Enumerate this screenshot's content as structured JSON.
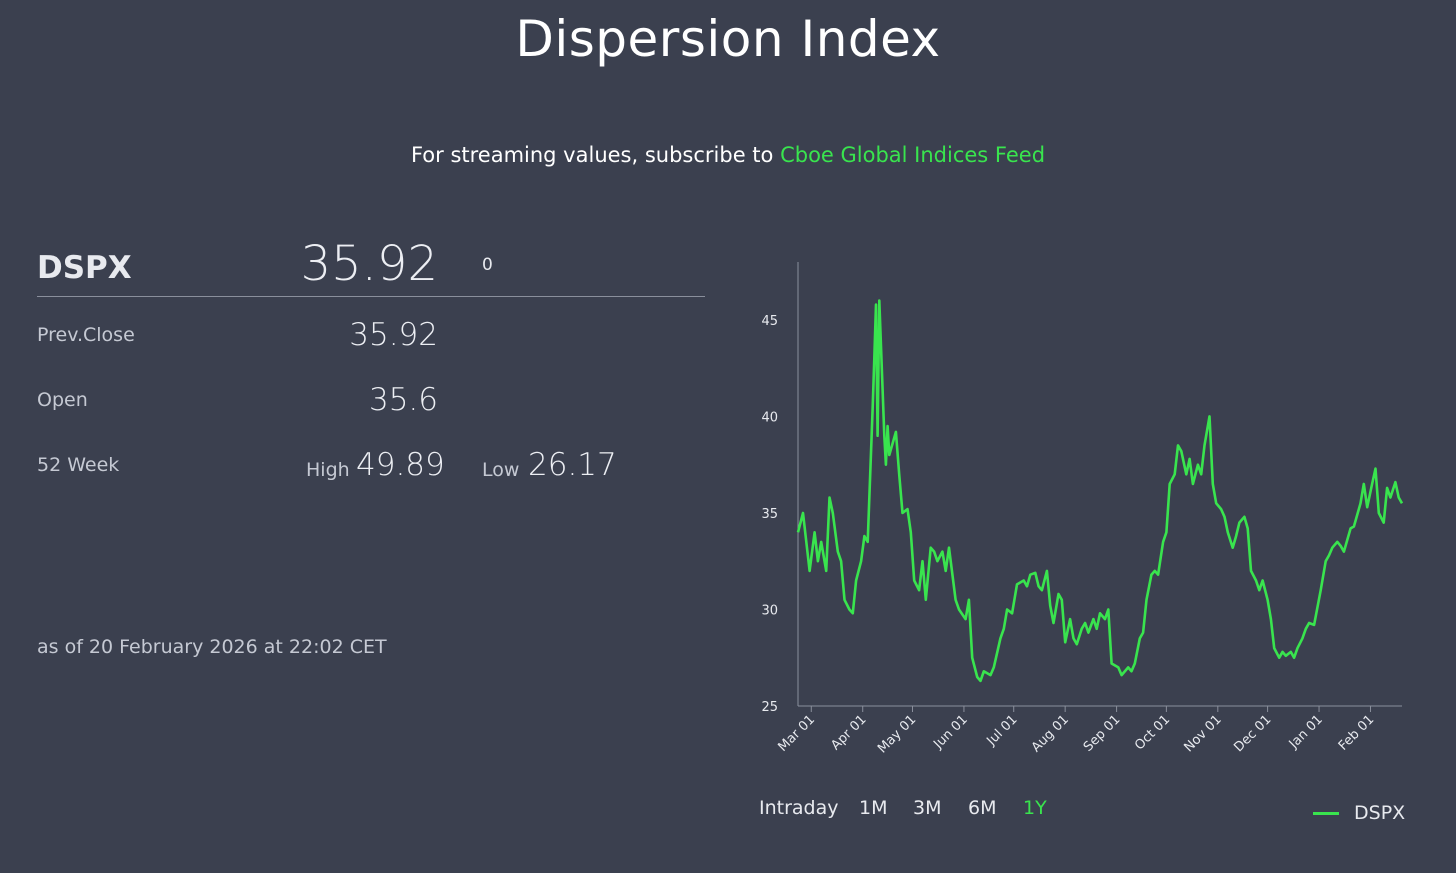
{
  "page": {
    "title": "Dispersion Index",
    "subtitle_prefix": "For streaming values, subscribe to",
    "subtitle_link": "Cboe Global Indices Feed"
  },
  "quote": {
    "symbol": "DSPX",
    "last": "35.92",
    "change": "0",
    "prev_close_label": "Prev.Close",
    "prev_close": "35.92",
    "open_label": "Open",
    "open": "35.6",
    "week52_label": "52 Week",
    "high_label": "High",
    "high": "49.89",
    "low_label": "Low",
    "low": "26.17",
    "as_of": "as of 20 February 2026 at 22:02 CET"
  },
  "ranges": [
    {
      "label": "Intraday",
      "active": false
    },
    {
      "label": "1M",
      "active": false
    },
    {
      "label": "3M",
      "active": false
    },
    {
      "label": "6M",
      "active": false
    },
    {
      "label": "1Y",
      "active": true
    }
  ],
  "colors": {
    "background": "#3b404f",
    "accent": "#39e44e",
    "axis": "#8a8f9c"
  },
  "chart_data": {
    "type": "line",
    "title": "",
    "xlabel": "",
    "ylabel": "",
    "ylim": [
      25,
      48
    ],
    "y_ticks": [
      25,
      30,
      35,
      40,
      45
    ],
    "x_ticks": [
      {
        "label": "Mar 01",
        "date": "2025-03-01"
      },
      {
        "label": "Apr 01",
        "date": "2025-04-01"
      },
      {
        "label": "May 01",
        "date": "2025-05-01"
      },
      {
        "label": "Jun 01",
        "date": "2025-06-01"
      },
      {
        "label": "Jul 01",
        "date": "2025-07-01"
      },
      {
        "label": "Aug 01",
        "date": "2025-08-01"
      },
      {
        "label": "Sep 01",
        "date": "2025-09-01"
      },
      {
        "label": "Oct 01",
        "date": "2025-10-01"
      },
      {
        "label": "Nov 01",
        "date": "2025-11-01"
      },
      {
        "label": "Dec 01",
        "date": "2025-12-01"
      },
      {
        "label": "Jan 01",
        "date": "2026-01-01"
      },
      {
        "label": "Feb 01",
        "date": "2026-02-01"
      }
    ],
    "xlim": [
      "2025-02-21",
      "2026-02-20"
    ],
    "legend": "bottom-right",
    "grid": false,
    "series": [
      {
        "name": "DSPX",
        "color": "#39e44e",
        "points": [
          [
            "2025-02-21",
            34.0
          ],
          [
            "2025-02-24",
            35.0
          ],
          [
            "2025-02-26",
            33.5
          ],
          [
            "2025-02-28",
            32.0
          ],
          [
            "2025-03-03",
            34.0
          ],
          [
            "2025-03-05",
            32.5
          ],
          [
            "2025-03-07",
            33.5
          ],
          [
            "2025-03-10",
            32.0
          ],
          [
            "2025-03-12",
            35.8
          ],
          [
            "2025-03-14",
            35.0
          ],
          [
            "2025-03-17",
            33.0
          ],
          [
            "2025-03-19",
            32.5
          ],
          [
            "2025-03-21",
            30.5
          ],
          [
            "2025-03-24",
            30.0
          ],
          [
            "2025-03-26",
            29.8
          ],
          [
            "2025-03-28",
            31.5
          ],
          [
            "2025-03-31",
            32.5
          ],
          [
            "2025-04-02",
            33.8
          ],
          [
            "2025-04-04",
            33.5
          ],
          [
            "2025-04-07",
            40.5
          ],
          [
            "2025-04-08",
            43.0
          ],
          [
            "2025-04-09",
            45.8
          ],
          [
            "2025-04-10",
            39.0
          ],
          [
            "2025-04-11",
            46.0
          ],
          [
            "2025-04-14",
            39.0
          ],
          [
            "2025-04-15",
            37.5
          ],
          [
            "2025-04-16",
            39.5
          ],
          [
            "2025-04-17",
            38.0
          ],
          [
            "2025-04-21",
            39.2
          ],
          [
            "2025-04-23",
            37.0
          ],
          [
            "2025-04-25",
            35.0
          ],
          [
            "2025-04-28",
            35.2
          ],
          [
            "2025-04-30",
            34.0
          ],
          [
            "2025-05-02",
            31.5
          ],
          [
            "2025-05-05",
            31.0
          ],
          [
            "2025-05-07",
            32.5
          ],
          [
            "2025-05-09",
            30.5
          ],
          [
            "2025-05-12",
            33.2
          ],
          [
            "2025-05-14",
            33.0
          ],
          [
            "2025-05-16",
            32.5
          ],
          [
            "2025-05-19",
            33.0
          ],
          [
            "2025-05-21",
            32.0
          ],
          [
            "2025-05-23",
            33.2
          ],
          [
            "2025-05-27",
            30.5
          ],
          [
            "2025-05-29",
            30.0
          ],
          [
            "2025-06-02",
            29.5
          ],
          [
            "2025-06-04",
            30.5
          ],
          [
            "2025-06-06",
            27.5
          ],
          [
            "2025-06-09",
            26.5
          ],
          [
            "2025-06-11",
            26.3
          ],
          [
            "2025-06-13",
            26.8
          ],
          [
            "2025-06-17",
            26.6
          ],
          [
            "2025-06-19",
            27.0
          ],
          [
            "2025-06-23",
            28.5
          ],
          [
            "2025-06-25",
            29.0
          ],
          [
            "2025-06-27",
            30.0
          ],
          [
            "2025-06-30",
            29.8
          ],
          [
            "2025-07-03",
            31.3
          ],
          [
            "2025-07-07",
            31.5
          ],
          [
            "2025-07-09",
            31.2
          ],
          [
            "2025-07-11",
            31.8
          ],
          [
            "2025-07-14",
            31.9
          ],
          [
            "2025-07-16",
            31.2
          ],
          [
            "2025-07-18",
            31.0
          ],
          [
            "2025-07-21",
            32.0
          ],
          [
            "2025-07-23",
            30.2
          ],
          [
            "2025-07-25",
            29.3
          ],
          [
            "2025-07-28",
            30.8
          ],
          [
            "2025-07-30",
            30.5
          ],
          [
            "2025-08-01",
            28.3
          ],
          [
            "2025-08-04",
            29.5
          ],
          [
            "2025-08-06",
            28.5
          ],
          [
            "2025-08-08",
            28.2
          ],
          [
            "2025-08-11",
            29.0
          ],
          [
            "2025-08-13",
            29.3
          ],
          [
            "2025-08-15",
            28.8
          ],
          [
            "2025-08-18",
            29.5
          ],
          [
            "2025-08-20",
            29.0
          ],
          [
            "2025-08-22",
            29.8
          ],
          [
            "2025-08-25",
            29.5
          ],
          [
            "2025-08-27",
            30.0
          ],
          [
            "2025-08-29",
            27.2
          ],
          [
            "2025-09-02",
            27.0
          ],
          [
            "2025-09-04",
            26.6
          ],
          [
            "2025-09-08",
            27.0
          ],
          [
            "2025-09-10",
            26.8
          ],
          [
            "2025-09-12",
            27.2
          ],
          [
            "2025-09-15",
            28.5
          ],
          [
            "2025-09-17",
            28.8
          ],
          [
            "2025-09-19",
            30.5
          ],
          [
            "2025-09-22",
            31.8
          ],
          [
            "2025-09-24",
            32.0
          ],
          [
            "2025-09-26",
            31.8
          ],
          [
            "2025-09-29",
            33.5
          ],
          [
            "2025-10-01",
            34.0
          ],
          [
            "2025-10-03",
            36.5
          ],
          [
            "2025-10-06",
            37.0
          ],
          [
            "2025-10-08",
            38.5
          ],
          [
            "2025-10-10",
            38.2
          ],
          [
            "2025-10-13",
            37.0
          ],
          [
            "2025-10-15",
            37.8
          ],
          [
            "2025-10-17",
            36.5
          ],
          [
            "2025-10-20",
            37.5
          ],
          [
            "2025-10-22",
            37.0
          ],
          [
            "2025-10-24",
            38.5
          ],
          [
            "2025-10-27",
            40.0
          ],
          [
            "2025-10-29",
            36.5
          ],
          [
            "2025-10-31",
            35.5
          ],
          [
            "2025-11-03",
            35.2
          ],
          [
            "2025-11-05",
            34.8
          ],
          [
            "2025-11-07",
            34.0
          ],
          [
            "2025-11-10",
            33.2
          ],
          [
            "2025-11-12",
            33.8
          ],
          [
            "2025-11-14",
            34.5
          ],
          [
            "2025-11-17",
            34.8
          ],
          [
            "2025-11-19",
            34.2
          ],
          [
            "2025-11-21",
            32.0
          ],
          [
            "2025-11-24",
            31.5
          ],
          [
            "2025-11-26",
            31.0
          ],
          [
            "2025-11-28",
            31.5
          ],
          [
            "2025-12-01",
            30.5
          ],
          [
            "2025-12-03",
            29.5
          ],
          [
            "2025-12-05",
            28.0
          ],
          [
            "2025-12-08",
            27.5
          ],
          [
            "2025-12-10",
            27.8
          ],
          [
            "2025-12-12",
            27.6
          ],
          [
            "2025-12-15",
            27.8
          ],
          [
            "2025-12-17",
            27.5
          ],
          [
            "2025-12-19",
            28.0
          ],
          [
            "2025-12-22",
            28.5
          ],
          [
            "2025-12-24",
            29.0
          ],
          [
            "2025-12-26",
            29.3
          ],
          [
            "2025-12-29",
            29.2
          ],
          [
            "2026-01-02",
            31.0
          ],
          [
            "2026-01-05",
            32.5
          ],
          [
            "2026-01-07",
            32.8
          ],
          [
            "2026-01-09",
            33.2
          ],
          [
            "2026-01-12",
            33.5
          ],
          [
            "2026-01-14",
            33.3
          ],
          [
            "2026-01-16",
            33.0
          ],
          [
            "2026-01-20",
            34.2
          ],
          [
            "2026-01-22",
            34.3
          ],
          [
            "2026-01-26",
            35.5
          ],
          [
            "2026-01-28",
            36.5
          ],
          [
            "2026-01-30",
            35.3
          ],
          [
            "2026-02-02",
            36.5
          ],
          [
            "2026-02-04",
            37.3
          ],
          [
            "2026-02-06",
            35.0
          ],
          [
            "2026-02-09",
            34.5
          ],
          [
            "2026-02-11",
            36.3
          ],
          [
            "2026-02-13",
            35.8
          ],
          [
            "2026-02-16",
            36.6
          ],
          [
            "2026-02-18",
            35.8
          ],
          [
            "2026-02-20",
            35.5
          ]
        ]
      }
    ]
  }
}
